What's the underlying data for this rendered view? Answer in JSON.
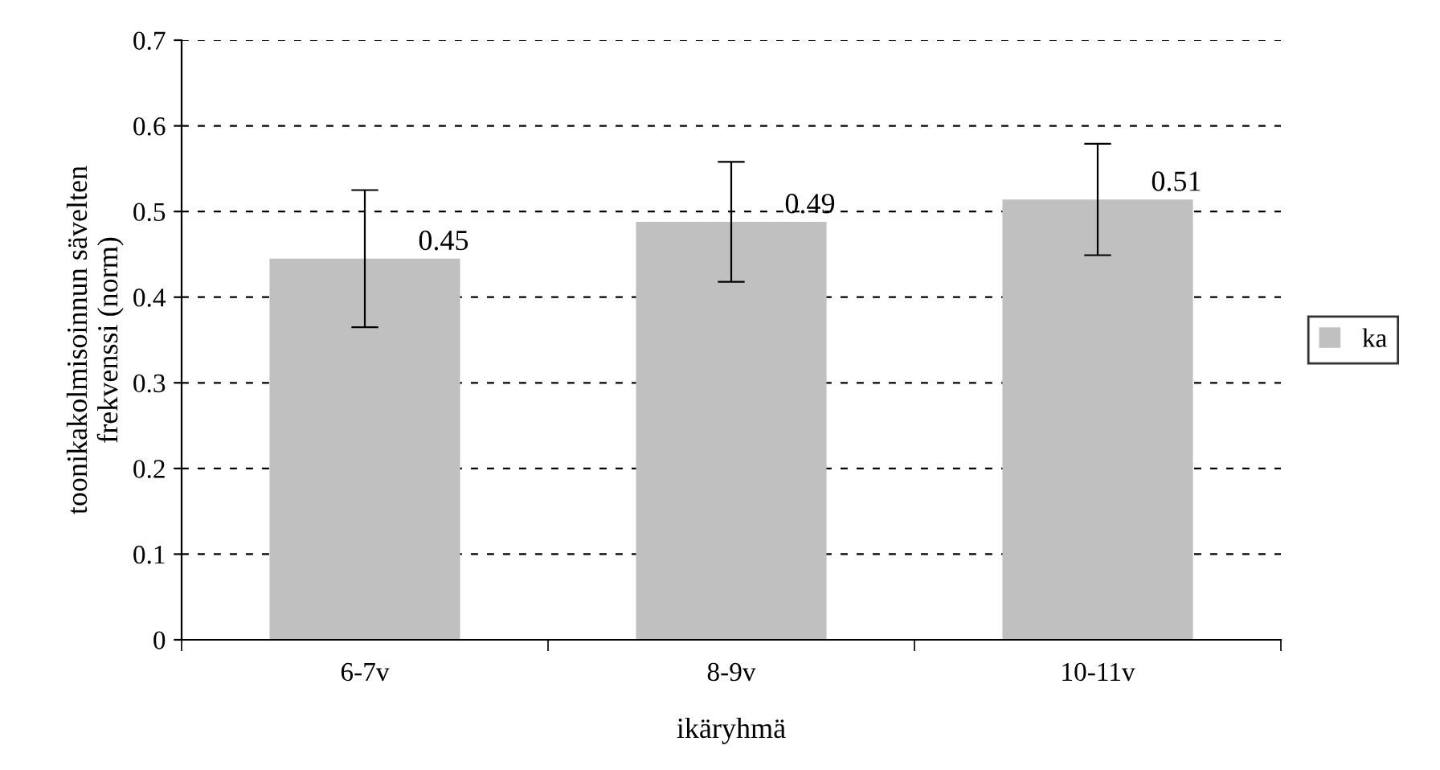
{
  "chart_data": {
    "type": "bar",
    "xlabel": "ikäryhmä",
    "ylabel": "toonikakolmisoinnun sävelten\nfrekvenssi (norm)",
    "categories": [
      "6-7v",
      "8-9v",
      "10-11v"
    ],
    "series": [
      {
        "name": "ka",
        "color": "#c0c0c0",
        "values": [
          0.445,
          0.488,
          0.514
        ],
        "errors": [
          0.08,
          0.07,
          0.065
        ],
        "value_labels": [
          "0.45",
          "0.49",
          "0.51"
        ]
      }
    ],
    "ylim": [
      0,
      0.7
    ],
    "yticks": [
      0,
      0.1,
      0.2,
      0.3,
      0.4,
      0.5,
      0.6,
      0.7
    ],
    "grid": "y",
    "legend": "right"
  }
}
